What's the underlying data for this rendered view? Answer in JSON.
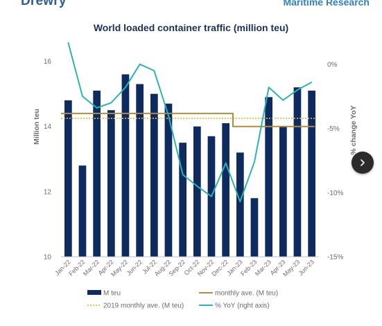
{
  "header": {
    "brand_left": "Drewry",
    "brand_right": "Maritime Research"
  },
  "colors": {
    "bars": "#0d2b5e",
    "monthly_ave": "#b28c3e",
    "ave_2019": "#f0b43c",
    "yoy": "#2bb3b5",
    "axis_text": "#6b6b6b",
    "grid": "#d9d9d9"
  },
  "icons": {
    "next": "chevron-right-icon"
  },
  "chart_data": {
    "type": "bar",
    "title": "World loaded container traffic (million teu)",
    "ylabel": "Million teu",
    "y2label": "% change YoY",
    "ylim": [
      10,
      16.5
    ],
    "y2lim": [
      -15,
      1.5
    ],
    "yticks": [
      "10",
      "12",
      "14",
      "16"
    ],
    "y2ticks": [
      "-15%",
      "-10%",
      "-5%",
      "0%"
    ],
    "categories": [
      "Jan-22",
      "Feb-22",
      "Mar-22",
      "Apr-22",
      "May-22",
      "Jun-22",
      "Jul-22",
      "Aug-22",
      "Sep-22",
      "Oct-22",
      "Nov-22",
      "Dec-22",
      "Jan-23",
      "Feb-23",
      "Mar-23",
      "Apr-23",
      "May-23",
      "Jun-23"
    ],
    "series": [
      {
        "name": "M teu",
        "kind": "bar",
        "axis": "left",
        "values": [
          14.8,
          12.8,
          15.1,
          14.5,
          15.6,
          15.3,
          15.0,
          14.7,
          13.5,
          14.0,
          13.7,
          14.1,
          13.2,
          11.8,
          14.9,
          14.0,
          15.2,
          15.1
        ]
      },
      {
        "name": "monthly ave. (M teu)",
        "kind": "line",
        "axis": "left",
        "values": [
          14.4,
          14.4,
          14.4,
          14.4,
          14.4,
          14.4,
          14.4,
          14.4,
          14.4,
          14.4,
          14.4,
          14.4,
          14.0,
          14.0,
          14.0,
          14.0,
          14.0,
          14.0
        ]
      },
      {
        "name": "2019 monthly ave. (M teu)",
        "kind": "dotted-line",
        "axis": "left",
        "values": [
          14.25,
          14.25,
          14.25,
          14.25,
          14.25,
          14.25,
          14.25,
          14.25,
          14.25,
          14.25,
          14.25,
          14.25,
          14.25,
          14.25,
          14.25,
          14.25,
          14.25,
          14.25
        ]
      },
      {
        "name": "% YoY (right axis)",
        "kind": "line",
        "axis": "right",
        "values": [
          1.7,
          -2.5,
          -3.4,
          -3.0,
          -1.8,
          0.0,
          -0.5,
          -4.0,
          -8.6,
          -9.5,
          -10.3,
          -7.7,
          -10.7,
          -7.6,
          -1.8,
          -2.8,
          -2.0,
          -1.4
        ]
      }
    ],
    "legend_position": "bottom",
    "grid": false
  }
}
